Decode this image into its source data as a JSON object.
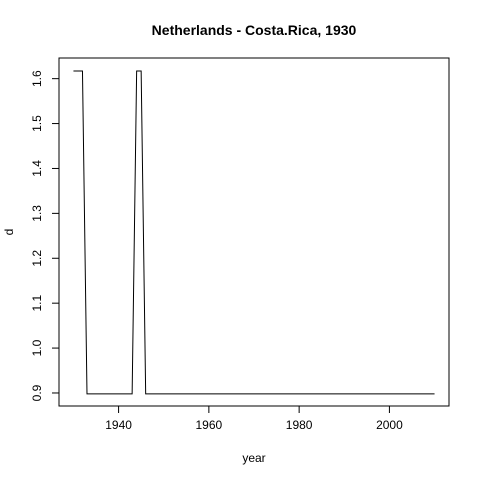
{
  "chart_data": {
    "type": "line",
    "title": "Netherlands - Costa.Rica, 1930",
    "xlabel": "year",
    "ylabel": "d",
    "xlim": [
      1926.8,
      2013.2
    ],
    "ylim": [
      0.871,
      1.646
    ],
    "x_ticks": [
      1940,
      1960,
      1980,
      2000
    ],
    "y_ticks": [
      0.9,
      1.0,
      1.1,
      1.2,
      1.3,
      1.4,
      1.5,
      1.6
    ],
    "x_tick_labels": [
      "1940",
      "1960",
      "1980",
      "2000"
    ],
    "y_tick_labels": [
      "0.9",
      "1.0",
      "1.1",
      "1.2",
      "1.3",
      "1.4",
      "1.5",
      "1.6"
    ],
    "series": [
      {
        "name": "d",
        "x": [
          1930,
          1932,
          1933,
          1943,
          1944,
          1945,
          1946,
          2010
        ],
        "y": [
          1.617,
          1.617,
          0.898,
          0.898,
          1.617,
          1.617,
          0.898,
          0.898
        ]
      }
    ]
  }
}
